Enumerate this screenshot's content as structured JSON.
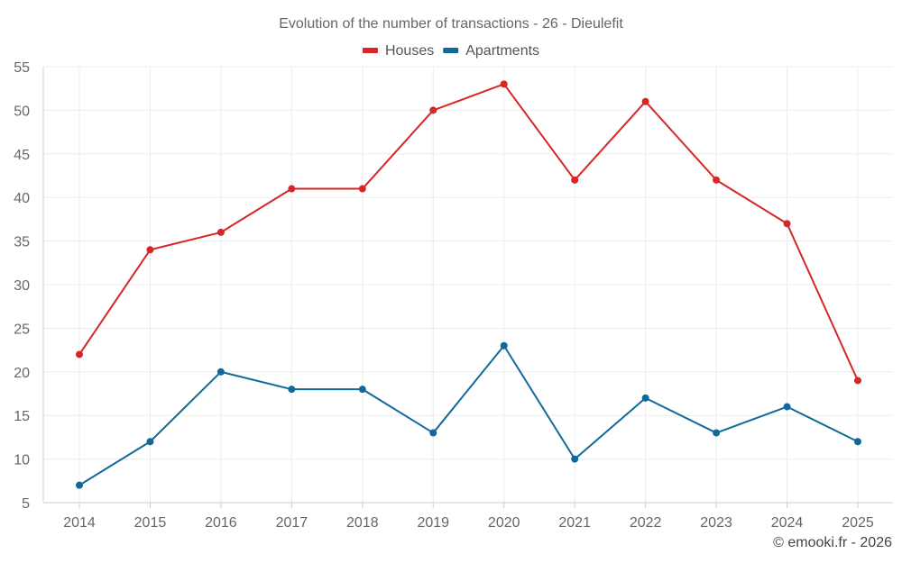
{
  "chart_data": {
    "type": "line",
    "title": "Evolution of the number of transactions - 26 - Dieulefit",
    "xlabel": "",
    "ylabel": "",
    "categories": [
      "2014",
      "2015",
      "2016",
      "2017",
      "2018",
      "2019",
      "2020",
      "2021",
      "2022",
      "2023",
      "2024",
      "2025"
    ],
    "ylim": [
      5,
      55
    ],
    "yticks": [
      5,
      10,
      15,
      20,
      25,
      30,
      35,
      40,
      45,
      50,
      55
    ],
    "grid": true,
    "legend_position": "top-center",
    "series": [
      {
        "name": "Houses",
        "color": "#d62728",
        "values": [
          22,
          34,
          36,
          41,
          41,
          50,
          53,
          42,
          51,
          42,
          37,
          19
        ]
      },
      {
        "name": "Apartments",
        "color": "#0f6a9b",
        "values": [
          7,
          12,
          20,
          18,
          18,
          13,
          23,
          10,
          17,
          13,
          16,
          12
        ]
      }
    ]
  },
  "footer": {
    "copyright": "© emooki.fr - 2026"
  }
}
